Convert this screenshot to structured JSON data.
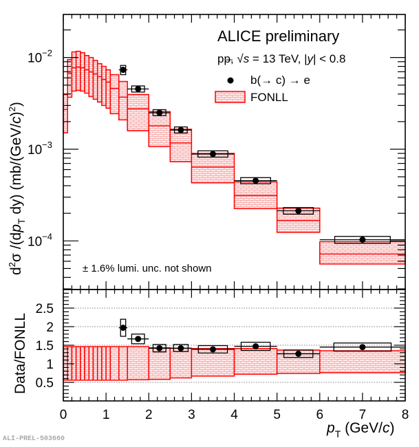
{
  "chart_data": {
    "type": "bar",
    "description": "Two-panel plot: pT-differential cross section of electrons from beauty-hadron decays compared to FONLL (top), and Data/FONLL ratio (bottom)",
    "legend": {
      "title": "ALICE preliminary",
      "subtitle_parts": [
        "pp, ",
        "√",
        "s",
        " = 13 TeV, |",
        "y",
        "| < 0.8"
      ],
      "entries": [
        {
          "label": "b(→ c) → e",
          "marker": "filled-circle",
          "color": "#000000"
        },
        {
          "label": "FONLL",
          "marker": "hatched-box",
          "color": "#ff0000"
        }
      ],
      "placement": "top-right"
    },
    "note": "± 1.6% lumi. unc. not shown",
    "watermark": "ALI-PREL-503660",
    "colors": {
      "data": "#000000",
      "fonll": "#ff0000",
      "fonll_fill": "#ffd6d6",
      "grid": "#555555"
    },
    "xaxis": {
      "label_main": "p",
      "label_sub": "T",
      "label_units": " (GeV/",
      "label_units_italic": "c",
      "label_units_end": ")",
      "range": [
        0,
        8
      ],
      "ticks": [
        0,
        1,
        2,
        3,
        4,
        5,
        6,
        7,
        8
      ],
      "tick_labels": [
        "0",
        "1",
        "2",
        "3",
        "4",
        "5",
        "6",
        "7",
        "8"
      ]
    },
    "top_panel": {
      "scale": "log",
      "yrange": [
        2.95e-05,
        0.0295
      ],
      "yaxis_label": "d²σ /(dp_T dy) (mb/(GeV/c)²)",
      "yaxis_label_parts": {
        "d": "d",
        "sup2": "2",
        "sigma": "σ /(d",
        "p": "p",
        "T": "T",
        "dy": " dy) (mb/(GeV/",
        "c": "c",
        "close": ")",
        "sup2b": "2",
        "close2": ")"
      },
      "ticks": [
        {
          "value": 0.01,
          "base": "10",
          "exp": "−2"
        },
        {
          "value": 0.001,
          "base": "10",
          "exp": "−3"
        },
        {
          "value": 0.0001,
          "base": "10",
          "exp": "−4"
        }
      ],
      "fonll": [
        {
          "xlo": 0.0,
          "xhi": 0.1,
          "lo": 0.00151,
          "central": 0.00271,
          "hi": 0.00395
        },
        {
          "xlo": 0.1,
          "xhi": 0.2,
          "lo": 0.00369,
          "central": 0.00673,
          "hi": 0.0095
        },
        {
          "xlo": 0.2,
          "xhi": 0.3,
          "lo": 0.00431,
          "central": 0.00773,
          "hi": 0.0115
        },
        {
          "xlo": 0.3,
          "xhi": 0.4,
          "lo": 0.00438,
          "central": 0.00787,
          "hi": 0.0117
        },
        {
          "xlo": 0.4,
          "xhi": 0.5,
          "lo": 0.00431,
          "central": 0.00773,
          "hi": 0.0113
        },
        {
          "xlo": 0.5,
          "xhi": 0.6,
          "lo": 0.00409,
          "central": 0.00734,
          "hi": 0.0105
        },
        {
          "xlo": 0.6,
          "xhi": 0.7,
          "lo": 0.00375,
          "central": 0.00697,
          "hi": 0.01
        },
        {
          "xlo": 0.7,
          "xhi": 0.8,
          "lo": 0.00351,
          "central": 0.00662,
          "hi": 0.0093
        },
        {
          "xlo": 0.8,
          "xhi": 0.9,
          "lo": 0.00327,
          "central": 0.00618,
          "hi": 0.00857
        },
        {
          "xlo": 0.9,
          "xhi": 1.0,
          "lo": 0.003,
          "central": 0.00577,
          "hi": 0.008
        },
        {
          "xlo": 1.0,
          "xhi": 1.1,
          "lo": 0.0028,
          "central": 0.00539,
          "hi": 0.00734
        },
        {
          "xlo": 1.1,
          "xhi": 1.3,
          "lo": 0.00244,
          "central": 0.0046,
          "hi": 0.0065
        },
        {
          "xlo": 1.3,
          "xhi": 1.5,
          "lo": 0.00209,
          "central": 0.0037,
          "hi": 0.00548
        },
        {
          "xlo": 1.5,
          "xhi": 2.0,
          "lo": 0.00159,
          "central": 0.00276,
          "hi": 0.00395
        },
        {
          "xlo": 2.0,
          "xhi": 2.5,
          "lo": 0.00107,
          "central": 0.0018,
          "hi": 0.00257
        },
        {
          "xlo": 2.5,
          "xhi": 3.0,
          "lo": 0.00073,
          "central": 0.00117,
          "hi": 0.00165
        },
        {
          "xlo": 3.0,
          "xhi": 4.0,
          "lo": 0.00043,
          "central": 0.00064,
          "hi": 0.0009
        },
        {
          "xlo": 4.0,
          "xhi": 5.0,
          "lo": 0.000225,
          "central": 0.000312,
          "hi": 0.00044
        },
        {
          "xlo": 5.0,
          "xhi": 6.0,
          "lo": 0.000124,
          "central": 0.000167,
          "hi": 0.000228
        },
        {
          "xlo": 6.0,
          "xhi": 8.0,
          "lo": 5.6e-05,
          "central": 7.2e-05,
          "hi": 9.8e-05
        }
      ],
      "data": [
        {
          "x": 1.4,
          "xlo": 1.3,
          "xhi": 1.5,
          "y": 0.00734,
          "stat_lo": 0.0071,
          "stat_hi": 0.0076,
          "syst_lo": 0.0065,
          "syst_hi": 0.0082,
          "box_half_width": 0.06
        },
        {
          "x": 1.75,
          "xlo": 1.5,
          "xhi": 2.0,
          "y": 0.00454,
          "stat_lo": 0.0044,
          "stat_hi": 0.0047,
          "syst_lo": 0.0042,
          "syst_hi": 0.0049,
          "box_half_width": 0.15
        },
        {
          "x": 2.25,
          "xlo": 2.0,
          "xhi": 2.5,
          "y": 0.0025,
          "stat_lo": 0.00245,
          "stat_hi": 0.00255,
          "syst_lo": 0.00232,
          "syst_hi": 0.0027,
          "box_half_width": 0.15
        },
        {
          "x": 2.75,
          "xlo": 2.5,
          "xhi": 3.0,
          "y": 0.00162,
          "stat_lo": 0.00158,
          "stat_hi": 0.00166,
          "syst_lo": 0.0015,
          "syst_hi": 0.00175,
          "box_half_width": 0.15
        },
        {
          "x": 3.5,
          "xlo": 3.0,
          "xhi": 4.0,
          "y": 0.000887,
          "stat_lo": 0.00087,
          "stat_hi": 0.00091,
          "syst_lo": 0.00082,
          "syst_hi": 0.00096,
          "box_half_width": 0.35
        },
        {
          "x": 4.5,
          "xlo": 4.0,
          "xhi": 5.0,
          "y": 0.000454,
          "stat_lo": 0.000444,
          "stat_hi": 0.000464,
          "syst_lo": 0.00042,
          "syst_hi": 0.00049,
          "box_half_width": 0.35
        },
        {
          "x": 5.5,
          "xlo": 5.0,
          "xhi": 6.0,
          "y": 0.000213,
          "stat_lo": 0.000207,
          "stat_hi": 0.000219,
          "syst_lo": 0.000196,
          "syst_hi": 0.000231,
          "box_half_width": 0.35
        },
        {
          "x": 7.0,
          "xlo": 6.0,
          "xhi": 8.0,
          "y": 0.000103,
          "stat_lo": 0.0001,
          "stat_hi": 0.000106,
          "syst_lo": 9.4e-05,
          "syst_hi": 0.000112,
          "box_half_width": 0.65
        }
      ]
    },
    "bottom_panel": {
      "scale": "linear",
      "yrange": [
        0,
        3
      ],
      "yaxis_label": "Data/FONLL",
      "ticks": [
        {
          "value": 0.5,
          "label": "0.5"
        },
        {
          "value": 1,
          "label": "1"
        },
        {
          "value": 1.5,
          "label": "1.5"
        },
        {
          "value": 2,
          "label": "2"
        },
        {
          "value": 2.5,
          "label": "2.5"
        }
      ],
      "gridlines": [
        0.5,
        1,
        1.5,
        2,
        2.5
      ],
      "fonll_ratio": [
        {
          "xlo": 0.0,
          "xhi": 0.1,
          "lo": 0.56,
          "hi": 1.46
        },
        {
          "xlo": 0.1,
          "xhi": 0.2,
          "lo": 0.56,
          "hi": 1.46
        },
        {
          "xlo": 0.2,
          "xhi": 0.3,
          "lo": 0.56,
          "hi": 1.46
        },
        {
          "xlo": 0.3,
          "xhi": 0.4,
          "lo": 0.56,
          "hi": 1.46
        },
        {
          "xlo": 0.4,
          "xhi": 0.5,
          "lo": 0.56,
          "hi": 1.46
        },
        {
          "xlo": 0.5,
          "xhi": 0.6,
          "lo": 0.56,
          "hi": 1.46
        },
        {
          "xlo": 0.6,
          "xhi": 0.7,
          "lo": 0.56,
          "hi": 1.46
        },
        {
          "xlo": 0.7,
          "xhi": 0.8,
          "lo": 0.56,
          "hi": 1.46
        },
        {
          "xlo": 0.8,
          "xhi": 0.9,
          "lo": 0.56,
          "hi": 1.46
        },
        {
          "xlo": 0.9,
          "xhi": 1.0,
          "lo": 0.56,
          "hi": 1.46
        },
        {
          "xlo": 1.0,
          "xhi": 1.1,
          "lo": 0.56,
          "hi": 1.46
        },
        {
          "xlo": 1.1,
          "xhi": 1.3,
          "lo": 0.56,
          "hi": 1.46
        },
        {
          "xlo": 1.3,
          "xhi": 1.5,
          "lo": 0.56,
          "hi": 1.46
        },
        {
          "xlo": 1.5,
          "xhi": 2.0,
          "lo": 0.57,
          "hi": 1.46
        },
        {
          "xlo": 2.0,
          "xhi": 2.5,
          "lo": 0.58,
          "hi": 1.43
        },
        {
          "xlo": 2.5,
          "xhi": 3.0,
          "lo": 0.62,
          "hi": 1.42
        },
        {
          "xlo": 3.0,
          "xhi": 4.0,
          "lo": 0.67,
          "hi": 1.41
        },
        {
          "xlo": 4.0,
          "xhi": 5.0,
          "lo": 0.72,
          "hi": 1.41
        },
        {
          "xlo": 5.0,
          "xhi": 6.0,
          "lo": 0.74,
          "hi": 1.37
        },
        {
          "xlo": 6.0,
          "xhi": 8.0,
          "lo": 0.76,
          "hi": 1.35
        }
      ],
      "data": [
        {
          "x": 1.4,
          "xlo": 1.3,
          "xhi": 1.5,
          "y": 1.97,
          "syst_lo": 1.74,
          "syst_hi": 2.2,
          "box_half_width": 0.06
        },
        {
          "x": 1.75,
          "xlo": 1.5,
          "xhi": 2.0,
          "y": 1.67,
          "syst_lo": 1.54,
          "syst_hi": 1.8,
          "box_half_width": 0.15
        },
        {
          "x": 2.25,
          "xlo": 2.0,
          "xhi": 2.5,
          "y": 1.42,
          "syst_lo": 1.32,
          "syst_hi": 1.52,
          "box_half_width": 0.15
        },
        {
          "x": 2.75,
          "xlo": 2.5,
          "xhi": 3.0,
          "y": 1.42,
          "syst_lo": 1.33,
          "syst_hi": 1.52,
          "box_half_width": 0.17
        },
        {
          "x": 3.5,
          "xlo": 3.0,
          "xhi": 4.0,
          "y": 1.39,
          "syst_lo": 1.29,
          "syst_hi": 1.49,
          "box_half_width": 0.34
        },
        {
          "x": 4.5,
          "xlo": 4.0,
          "xhi": 5.0,
          "y": 1.47,
          "syst_lo": 1.36,
          "syst_hi": 1.58,
          "box_half_width": 0.34
        },
        {
          "x": 5.5,
          "xlo": 5.0,
          "xhi": 6.0,
          "y": 1.27,
          "syst_lo": 1.17,
          "syst_hi": 1.37,
          "box_half_width": 0.34
        },
        {
          "x": 7.0,
          "xlo": 6.0,
          "xhi": 8.0,
          "y": 1.45,
          "syst_lo": 1.34,
          "syst_hi": 1.56,
          "box_half_width": 0.67
        }
      ]
    }
  }
}
